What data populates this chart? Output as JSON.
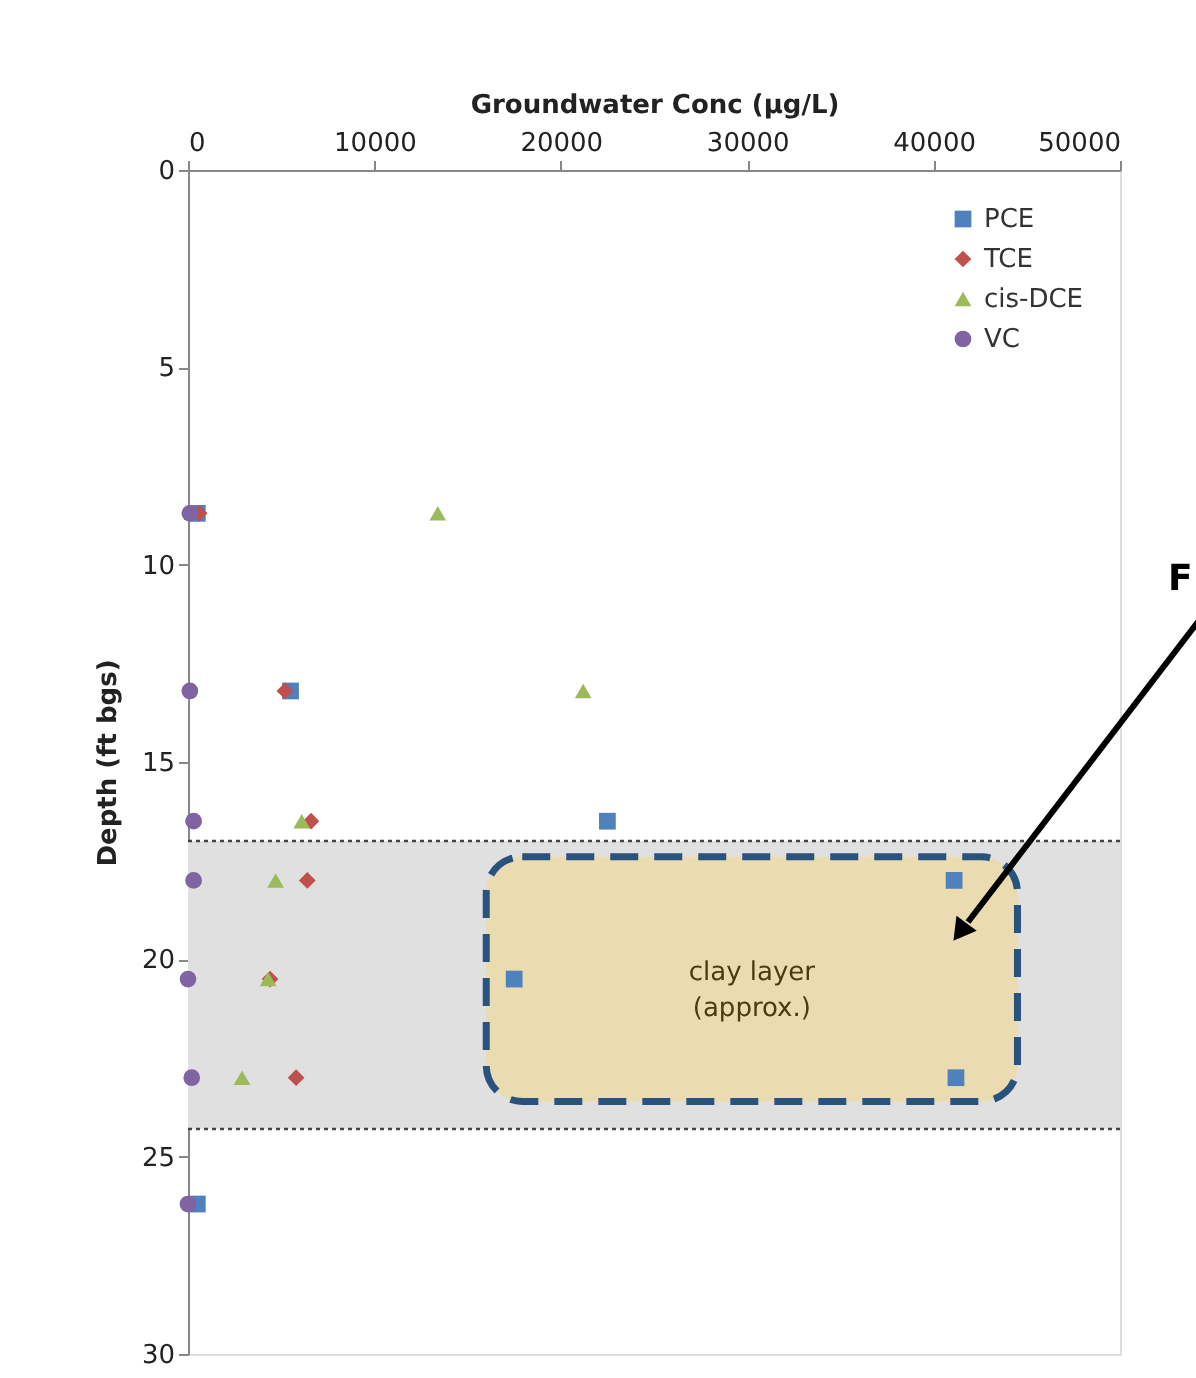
{
  "chart_data": {
    "type": "scatter",
    "xlabel": "Groundwater Conc (µg/L)",
    "ylabel": "Depth (ft bgs)",
    "xlim": [
      0,
      50000
    ],
    "xticks": [
      0,
      10000,
      20000,
      30000,
      40000,
      50000
    ],
    "ylim": [
      30,
      0
    ],
    "yticks": [
      0,
      5,
      10,
      15,
      20,
      25,
      30
    ],
    "series": [
      {
        "name": "PCE",
        "color": "#4f81bd",
        "marker": "square",
        "x": [
          500,
          5500,
          22500,
          41100,
          17500,
          41200,
          500
        ],
        "values": [
          8.7,
          13.2,
          16.5,
          18.0,
          20.5,
          23.0,
          26.2
        ]
      },
      {
        "name": "TCE",
        "color": "#c0504d",
        "marker": "diamond",
        "x": [
          600,
          5200,
          6600,
          6400,
          4400,
          5800,
          null
        ],
        "values": [
          8.7,
          13.2,
          16.5,
          18.0,
          20.5,
          23.0,
          null
        ]
      },
      {
        "name": "cis-DCE",
        "color": "#9bbb59",
        "marker": "triangle",
        "x": [
          13400,
          21200,
          6100,
          4700,
          4300,
          2900,
          null
        ],
        "values": [
          8.7,
          13.2,
          16.5,
          18.0,
          20.5,
          23.0,
          null
        ]
      },
      {
        "name": "VC",
        "color": "#8064a2",
        "marker": "circle",
        "x": [
          100,
          100,
          300,
          300,
          0,
          200,
          0
        ],
        "values": [
          8.7,
          13.2,
          16.5,
          18.0,
          20.5,
          23.0,
          26.2
        ]
      }
    ],
    "bands": [
      {
        "axis": "y",
        "from": 17.0,
        "to": 24.3,
        "color": "#e0e0e0"
      },
      {
        "axis": "y",
        "from": 17.4,
        "to": 23.6,
        "label": "clay layer (approx.)",
        "color": "#ecdca8"
      }
    ],
    "ref_lines": [
      {
        "axis": "y",
        "value": 17.0,
        "color": "#444444",
        "line_style": "dotted"
      },
      {
        "axis": "y",
        "value": 24.3,
        "color": "#444444",
        "line_style": "dotted"
      }
    ],
    "annotations": [
      "F"
    ],
    "legend": "top right",
    "grid": false
  }
}
